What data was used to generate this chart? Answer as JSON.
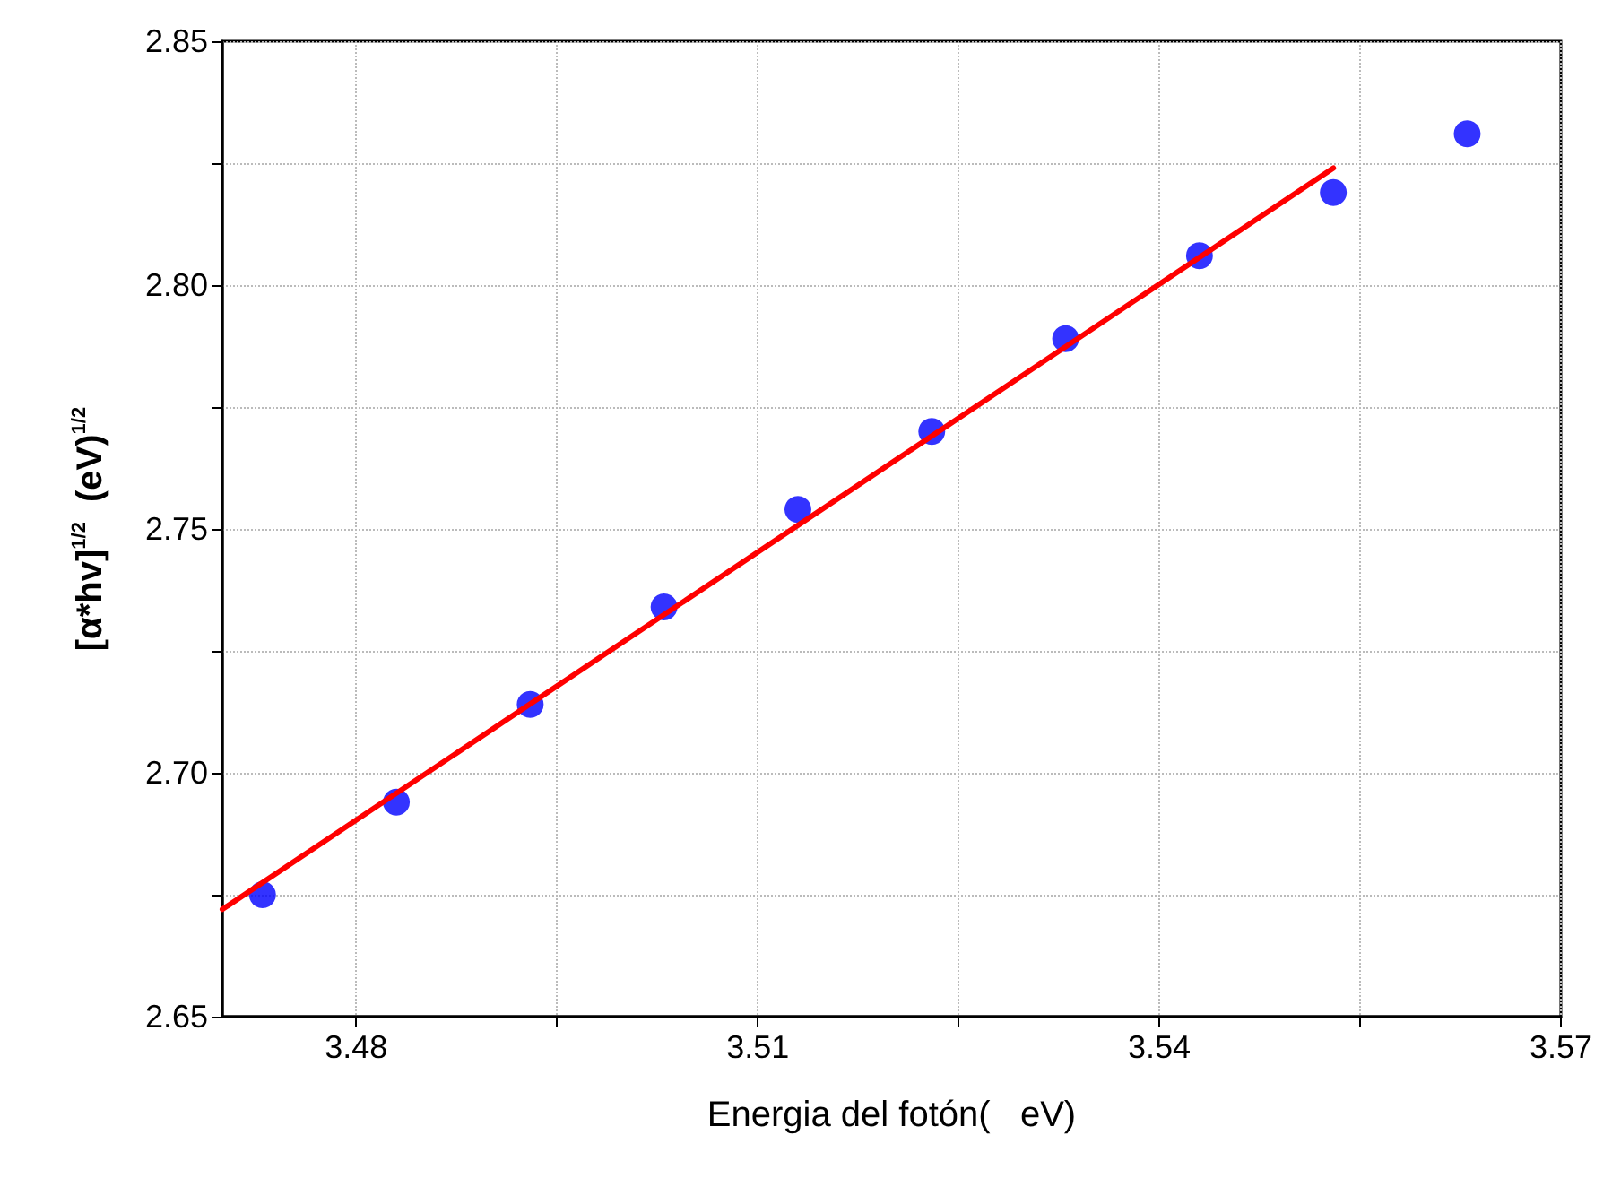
{
  "chart_data": {
    "type": "scatter",
    "xlabel": "Energia del fotón(   eV)",
    "ylabel": "[α*hv]$^{1/2}$  (eV)$^{1/2}$",
    "xlim": [
      3.47,
      3.57
    ],
    "ylim": [
      2.65,
      2.85
    ],
    "xticks": [
      3.48,
      {
        "value": 3.495,
        "label": null
      },
      3.51,
      {
        "value": 3.525,
        "label": null
      },
      3.54,
      {
        "value": 3.555,
        "label": null
      },
      3.57
    ],
    "yticks": [
      2.65,
      {
        "value": 2.675,
        "label": null
      },
      {
        "value": 2.7,
        "label": "2.70"
      },
      {
        "value": 2.725,
        "label": null
      },
      2.75,
      {
        "value": 2.775,
        "label": null
      },
      {
        "value": 2.8,
        "label": "2.80"
      },
      {
        "value": 2.825,
        "label": null
      },
      2.85
    ],
    "grid": true,
    "series": [
      {
        "color": "#0000ff",
        "marker": "circle",
        "x": [
          3.473,
          3.483,
          3.493,
          3.503,
          3.513,
          3.523,
          3.533,
          3.543,
          3.553,
          3.563
        ],
        "values": [
          2.675,
          2.694,
          2.714,
          2.734,
          2.754,
          2.77,
          2.789,
          2.806,
          2.819,
          2.831
        ]
      },
      {
        "type": "line",
        "color": "#ff0000",
        "line_style": "solid",
        "x": [
          3.47,
          3.553
        ],
        "values": [
          2.672,
          2.824
        ]
      }
    ]
  }
}
